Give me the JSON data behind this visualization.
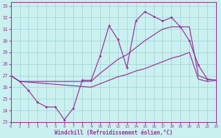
{
  "xlabel": "Windchill (Refroidissement éolien,°C)",
  "xlim": [
    0,
    23
  ],
  "ylim": [
    23,
    33.3
  ],
  "yticks": [
    23,
    24,
    25,
    26,
    27,
    28,
    29,
    30,
    31,
    32,
    33
  ],
  "xticks": [
    0,
    1,
    2,
    3,
    4,
    5,
    6,
    7,
    8,
    9,
    10,
    11,
    12,
    13,
    14,
    15,
    16,
    17,
    18,
    19,
    20,
    21,
    22,
    23
  ],
  "bg_color": "#caf0f0",
  "grid_color": "#a8dada",
  "line_color": "#993399",
  "jagged_x": [
    0,
    1,
    2,
    3,
    4,
    5,
    6,
    7,
    8,
    9,
    10,
    11,
    12,
    13,
    14,
    15,
    16,
    17,
    18,
    19,
    20,
    21,
    22,
    23
  ],
  "jagged_y": [
    27.0,
    26.5,
    25.7,
    24.7,
    24.3,
    24.3,
    23.2,
    24.2,
    26.6,
    26.6,
    28.7,
    31.3,
    30.1,
    27.7,
    31.7,
    32.5,
    32.1,
    31.7,
    32.0,
    31.2,
    30.0,
    27.9,
    26.7,
    26.6
  ],
  "upper_x": [
    0,
    1,
    9,
    10,
    11,
    12,
    13,
    14,
    15,
    16,
    17,
    18,
    19,
    20,
    21,
    22,
    23
  ],
  "upper_y": [
    27.0,
    26.5,
    26.5,
    27.2,
    27.8,
    28.4,
    28.8,
    29.4,
    30.0,
    30.5,
    31.0,
    31.2,
    31.2,
    31.2,
    27.0,
    26.7,
    26.6
  ],
  "lower_x": [
    0,
    1,
    9,
    10,
    11,
    12,
    13,
    14,
    15,
    16,
    17,
    18,
    19,
    20,
    21,
    22,
    23
  ],
  "lower_y": [
    27.0,
    26.5,
    26.0,
    26.3,
    26.6,
    26.9,
    27.1,
    27.4,
    27.6,
    27.9,
    28.2,
    28.5,
    28.7,
    29.0,
    26.7,
    26.5,
    26.6
  ]
}
